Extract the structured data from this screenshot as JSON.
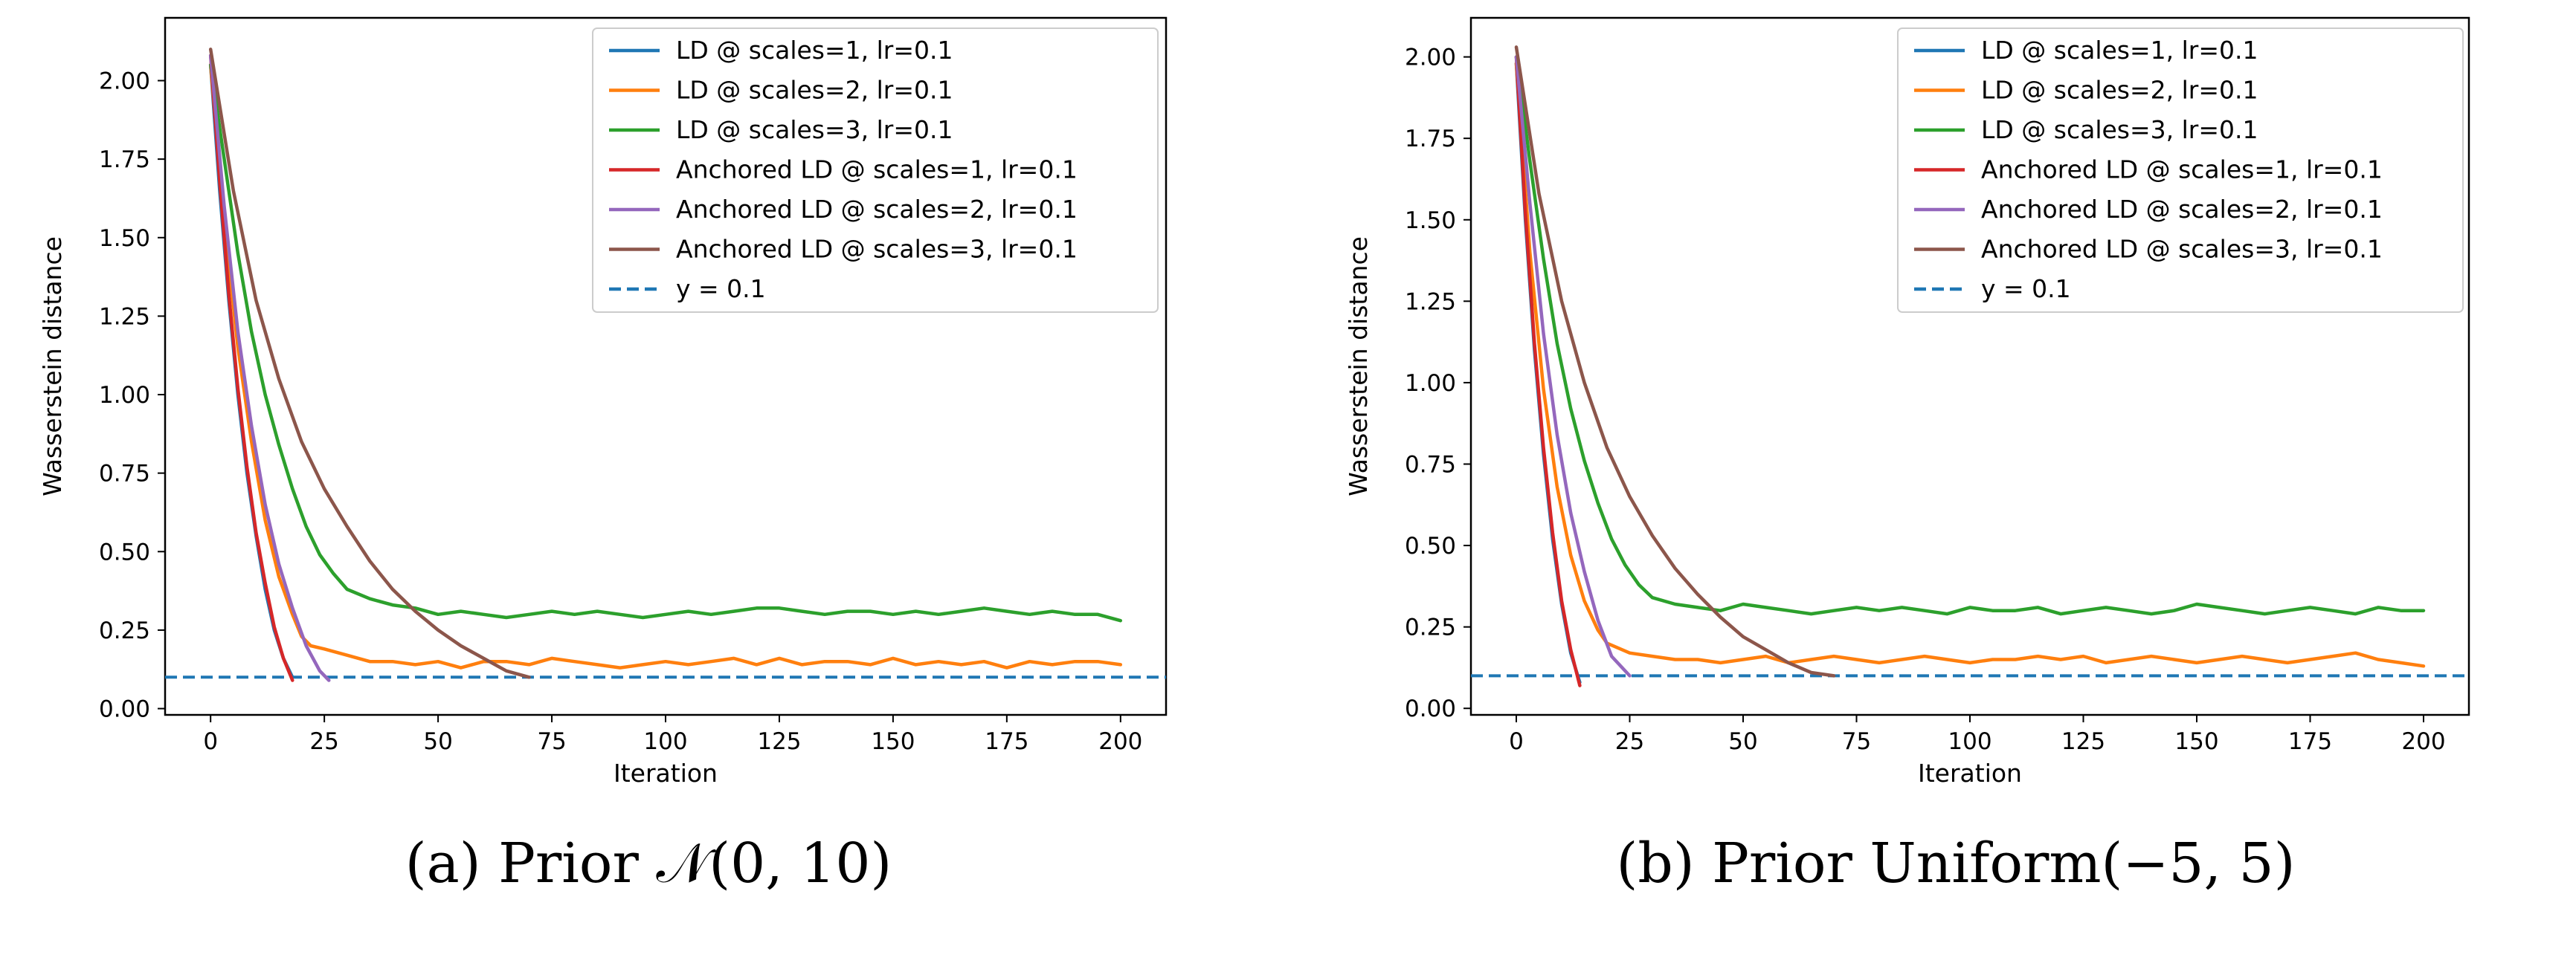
{
  "chart_data": [
    {
      "type": "line",
      "caption": "(a) Prior 𝒩(0, 10)",
      "xlabel": "Iteration",
      "ylabel": "Wasserstein distance",
      "xlim": [
        -10,
        210
      ],
      "ylim": [
        -0.02,
        2.2
      ],
      "xticks": [
        0,
        25,
        50,
        75,
        100,
        125,
        150,
        175,
        200
      ],
      "xtick_labels": [
        "0",
        "25",
        "50",
        "75",
        "100",
        "125",
        "150",
        "175",
        "200"
      ],
      "yticks": [
        0.0,
        0.25,
        0.5,
        0.75,
        1.0,
        1.25,
        1.5,
        1.75,
        2.0
      ],
      "ytick_labels": [
        "0.00",
        "0.25",
        "0.50",
        "0.75",
        "1.00",
        "1.25",
        "1.50",
        "1.75",
        "2.00"
      ],
      "legend_position": "top-right",
      "reference_line": {
        "name": "y = 0.1",
        "y": 0.1,
        "color": "#1f77b4",
        "style": "dashed"
      },
      "series": [
        {
          "name": "LD @ scales=1, lr=0.1",
          "color": "#1f77b4",
          "x": [
            0,
            2,
            4,
            6,
            8,
            10,
            12,
            14,
            16,
            18
          ],
          "y": [
            2.05,
            1.65,
            1.3,
            1.0,
            0.75,
            0.55,
            0.38,
            0.25,
            0.16,
            0.1
          ]
        },
        {
          "name": "LD @ scales=2, lr=0.1",
          "color": "#ff7f0e",
          "x": [
            0,
            3,
            6,
            9,
            12,
            15,
            18,
            20,
            22,
            25,
            30,
            35,
            40,
            45,
            50,
            55,
            60,
            65,
            70,
            75,
            80,
            85,
            90,
            95,
            100,
            105,
            110,
            115,
            120,
            125,
            130,
            135,
            140,
            145,
            150,
            155,
            160,
            165,
            170,
            175,
            180,
            185,
            190,
            195,
            200
          ],
          "y": [
            2.05,
            1.55,
            1.15,
            0.85,
            0.6,
            0.42,
            0.3,
            0.23,
            0.2,
            0.19,
            0.17,
            0.15,
            0.15,
            0.14,
            0.15,
            0.13,
            0.15,
            0.15,
            0.14,
            0.16,
            0.15,
            0.14,
            0.13,
            0.14,
            0.15,
            0.14,
            0.15,
            0.16,
            0.14,
            0.16,
            0.14,
            0.15,
            0.15,
            0.14,
            0.16,
            0.14,
            0.15,
            0.14,
            0.15,
            0.13,
            0.15,
            0.14,
            0.15,
            0.15,
            0.14
          ]
        },
        {
          "name": "LD @ scales=3, lr=0.1",
          "color": "#2ca02c",
          "x": [
            0,
            3,
            6,
            9,
            12,
            15,
            18,
            21,
            24,
            27,
            30,
            35,
            40,
            45,
            50,
            55,
            60,
            65,
            70,
            75,
            80,
            85,
            90,
            95,
            100,
            105,
            110,
            115,
            120,
            125,
            130,
            135,
            140,
            145,
            150,
            155,
            160,
            165,
            170,
            175,
            180,
            185,
            190,
            195,
            200
          ],
          "y": [
            2.05,
            1.75,
            1.45,
            1.2,
            1.0,
            0.84,
            0.7,
            0.58,
            0.49,
            0.43,
            0.38,
            0.35,
            0.33,
            0.32,
            0.3,
            0.31,
            0.3,
            0.29,
            0.3,
            0.31,
            0.3,
            0.31,
            0.3,
            0.29,
            0.3,
            0.31,
            0.3,
            0.31,
            0.32,
            0.32,
            0.31,
            0.3,
            0.31,
            0.31,
            0.3,
            0.31,
            0.3,
            0.31,
            0.32,
            0.31,
            0.3,
            0.31,
            0.3,
            0.3,
            0.28
          ]
        },
        {
          "name": "Anchored LD @ scales=1, lr=0.1",
          "color": "#d62728",
          "x": [
            0,
            2,
            4,
            6,
            8,
            10,
            12,
            14,
            16,
            18
          ],
          "y": [
            2.08,
            1.68,
            1.32,
            1.02,
            0.77,
            0.56,
            0.4,
            0.26,
            0.16,
            0.09
          ]
        },
        {
          "name": "Anchored LD @ scales=2, lr=0.1",
          "color": "#9467bd",
          "x": [
            0,
            3,
            6,
            9,
            12,
            15,
            18,
            21,
            24,
            26
          ],
          "y": [
            2.08,
            1.6,
            1.2,
            0.9,
            0.65,
            0.46,
            0.32,
            0.2,
            0.12,
            0.09
          ]
        },
        {
          "name": "Anchored LD @ scales=3, lr=0.1",
          "color": "#8c564b",
          "x": [
            0,
            5,
            10,
            15,
            20,
            25,
            30,
            35,
            40,
            45,
            50,
            55,
            60,
            65,
            70
          ],
          "y": [
            2.1,
            1.65,
            1.3,
            1.05,
            0.85,
            0.7,
            0.58,
            0.47,
            0.38,
            0.31,
            0.25,
            0.2,
            0.16,
            0.12,
            0.1
          ]
        }
      ]
    },
    {
      "type": "line",
      "caption": "(b) Prior Uniform(−5, 5)",
      "xlabel": "Iteration",
      "ylabel": "Wasserstein distance",
      "xlim": [
        -10,
        210
      ],
      "ylim": [
        -0.02,
        2.12
      ],
      "xticks": [
        0,
        25,
        50,
        75,
        100,
        125,
        150,
        175,
        200
      ],
      "xtick_labels": [
        "0",
        "25",
        "50",
        "75",
        "100",
        "125",
        "150",
        "175",
        "200"
      ],
      "yticks": [
        0.0,
        0.25,
        0.5,
        0.75,
        1.0,
        1.25,
        1.5,
        1.75,
        2.0
      ],
      "ytick_labels": [
        "0.00",
        "0.25",
        "0.50",
        "0.75",
        "1.00",
        "1.25",
        "1.50",
        "1.75",
        "2.00"
      ],
      "legend_position": "top-right",
      "reference_line": {
        "name": "y = 0.1",
        "y": 0.1,
        "color": "#1f77b4",
        "style": "dashed"
      },
      "series": [
        {
          "name": "LD @ scales=1, lr=0.1",
          "color": "#1f77b4",
          "x": [
            0,
            2,
            4,
            6,
            8,
            10,
            12,
            14
          ],
          "y": [
            1.98,
            1.5,
            1.1,
            0.78,
            0.52,
            0.32,
            0.17,
            0.08
          ]
        },
        {
          "name": "LD @ scales=2, lr=0.1",
          "color": "#ff7f0e",
          "x": [
            0,
            3,
            6,
            9,
            12,
            15,
            18,
            20,
            25,
            30,
            35,
            40,
            45,
            50,
            55,
            60,
            65,
            70,
            75,
            80,
            85,
            90,
            95,
            100,
            105,
            110,
            115,
            120,
            125,
            130,
            135,
            140,
            145,
            150,
            155,
            160,
            165,
            170,
            175,
            180,
            185,
            190,
            195,
            200
          ],
          "y": [
            1.98,
            1.4,
            0.98,
            0.68,
            0.47,
            0.33,
            0.24,
            0.2,
            0.17,
            0.16,
            0.15,
            0.15,
            0.14,
            0.15,
            0.16,
            0.14,
            0.15,
            0.16,
            0.15,
            0.14,
            0.15,
            0.16,
            0.15,
            0.14,
            0.15,
            0.15,
            0.16,
            0.15,
            0.16,
            0.14,
            0.15,
            0.16,
            0.15,
            0.14,
            0.15,
            0.16,
            0.15,
            0.14,
            0.15,
            0.16,
            0.17,
            0.15,
            0.14,
            0.13
          ]
        },
        {
          "name": "LD @ scales=3, lr=0.1",
          "color": "#2ca02c",
          "x": [
            0,
            3,
            6,
            9,
            12,
            15,
            18,
            21,
            24,
            27,
            30,
            35,
            40,
            45,
            50,
            55,
            60,
            65,
            70,
            75,
            80,
            85,
            90,
            95,
            100,
            105,
            110,
            115,
            120,
            125,
            130,
            135,
            140,
            145,
            150,
            155,
            160,
            165,
            170,
            175,
            180,
            185,
            190,
            195,
            200
          ],
          "y": [
            2.0,
            1.68,
            1.38,
            1.12,
            0.92,
            0.76,
            0.63,
            0.52,
            0.44,
            0.38,
            0.34,
            0.32,
            0.31,
            0.3,
            0.32,
            0.31,
            0.3,
            0.29,
            0.3,
            0.31,
            0.3,
            0.31,
            0.3,
            0.29,
            0.31,
            0.3,
            0.3,
            0.31,
            0.29,
            0.3,
            0.31,
            0.3,
            0.29,
            0.3,
            0.32,
            0.31,
            0.3,
            0.29,
            0.3,
            0.31,
            0.3,
            0.29,
            0.31,
            0.3,
            0.3
          ]
        },
        {
          "name": "Anchored LD @ scales=1, lr=0.1",
          "color": "#d62728",
          "x": [
            0,
            2,
            4,
            6,
            8,
            10,
            12,
            14
          ],
          "y": [
            2.0,
            1.52,
            1.12,
            0.8,
            0.54,
            0.33,
            0.18,
            0.07
          ]
        },
        {
          "name": "Anchored LD @ scales=2, lr=0.1",
          "color": "#9467bd",
          "x": [
            0,
            3,
            6,
            9,
            12,
            15,
            18,
            21,
            25
          ],
          "y": [
            2.0,
            1.55,
            1.15,
            0.84,
            0.6,
            0.42,
            0.27,
            0.16,
            0.1
          ]
        },
        {
          "name": "Anchored LD @ scales=3, lr=0.1",
          "color": "#8c564b",
          "x": [
            0,
            5,
            10,
            15,
            20,
            25,
            30,
            35,
            40,
            45,
            50,
            55,
            60,
            65,
            70
          ],
          "y": [
            2.03,
            1.58,
            1.25,
            1.0,
            0.8,
            0.65,
            0.53,
            0.43,
            0.35,
            0.28,
            0.22,
            0.18,
            0.14,
            0.11,
            0.1
          ]
        }
      ]
    }
  ]
}
